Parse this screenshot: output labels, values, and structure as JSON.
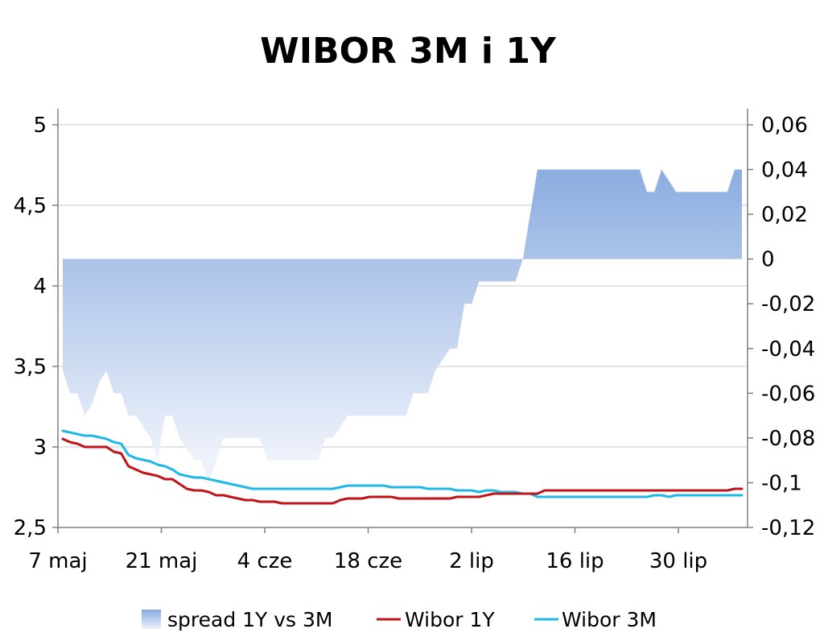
{
  "chart_data": {
    "type": "line",
    "title": "WIBOR 3M i 1Y",
    "x_tick_labels": [
      "7 maj",
      "21 maj",
      "4 cze",
      "18 cze",
      "2 lip",
      "16 lip",
      "30 lip"
    ],
    "y_left": {
      "min": 2.5,
      "max": 5,
      "ticks": [
        "5",
        "4,5",
        "4",
        "3,5",
        "3",
        "2,5"
      ],
      "tick_values": [
        5,
        4.5,
        4,
        3.5,
        3,
        2.5
      ]
    },
    "y_right": {
      "min": -0.12,
      "max": 0.06,
      "ticks": [
        "0,06",
        "0,04",
        "0,02",
        "0",
        "-0,02",
        "-0,04",
        "-0,06",
        "-0,08",
        "-0,1",
        "-0,12"
      ],
      "tick_values": [
        0.06,
        0.04,
        0.02,
        0,
        -0.02,
        -0.04,
        -0.06,
        -0.08,
        -0.1,
        -0.12
      ]
    },
    "grid": "horizontal",
    "legend_position": "bottom",
    "series": [
      {
        "name": "spread 1Y vs 3M",
        "kind": "area",
        "axis": "right",
        "color": "#8eaee0",
        "x": [
          0,
          1,
          2,
          3,
          4,
          5,
          6,
          7,
          8,
          9,
          10,
          11,
          12,
          13,
          14,
          15,
          16,
          17,
          18,
          19,
          20,
          21,
          22,
          23,
          24,
          25,
          26,
          27,
          28,
          29,
          30,
          31,
          32,
          33,
          34,
          35,
          36,
          37,
          38,
          39,
          40,
          41,
          42,
          43,
          44,
          45,
          46,
          47,
          48,
          49,
          50,
          51,
          52,
          53,
          54,
          55,
          56,
          57,
          58,
          59,
          60,
          61,
          62,
          63,
          64,
          65,
          66,
          67,
          68,
          69,
          70,
          71,
          72,
          73,
          74,
          75,
          76,
          77,
          78,
          79,
          80,
          81,
          82,
          83,
          84,
          85,
          86,
          87,
          88,
          89,
          90,
          91,
          92,
          93
        ],
        "values": [
          -0.05,
          -0.06,
          -0.06,
          -0.07,
          -0.065,
          -0.055,
          -0.05,
          -0.06,
          -0.06,
          -0.07,
          -0.07,
          -0.075,
          -0.08,
          -0.09,
          -0.07,
          -0.07,
          -0.08,
          -0.085,
          -0.09,
          -0.09,
          -0.1,
          -0.09,
          -0.08,
          -0.08,
          -0.08,
          -0.08,
          -0.08,
          -0.08,
          -0.09,
          -0.09,
          -0.09,
          -0.09,
          -0.09,
          -0.09,
          -0.09,
          -0.09,
          -0.08,
          -0.08,
          -0.075,
          -0.07,
          -0.07,
          -0.07,
          -0.07,
          -0.07,
          -0.07,
          -0.07,
          -0.07,
          -0.07,
          -0.06,
          -0.06,
          -0.06,
          -0.05,
          -0.045,
          -0.04,
          -0.04,
          -0.02,
          -0.02,
          -0.01,
          -0.01,
          -0.01,
          -0.01,
          -0.01,
          -0.01,
          0.0,
          0.02,
          0.04,
          0.04,
          0.04,
          0.04,
          0.04,
          0.04,
          0.04,
          0.04,
          0.04,
          0.04,
          0.04,
          0.04,
          0.04,
          0.04,
          0.04,
          0.03,
          0.03,
          0.04,
          0.035,
          0.03,
          0.03,
          0.03,
          0.03,
          0.03,
          0.03,
          0.03,
          0.03,
          0.04,
          0.04
        ]
      },
      {
        "name": "Wibor 1Y",
        "kind": "line",
        "axis": "left",
        "color": "#c0141b",
        "x": [
          0,
          1,
          2,
          3,
          4,
          5,
          6,
          7,
          8,
          9,
          10,
          11,
          12,
          13,
          14,
          15,
          16,
          17,
          18,
          19,
          20,
          21,
          22,
          23,
          24,
          25,
          26,
          27,
          28,
          29,
          30,
          31,
          32,
          33,
          34,
          35,
          36,
          37,
          38,
          39,
          40,
          41,
          42,
          43,
          44,
          45,
          46,
          47,
          48,
          49,
          50,
          51,
          52,
          53,
          54,
          55,
          56,
          57,
          58,
          59,
          60,
          61,
          62,
          63,
          64,
          65,
          66,
          67,
          68,
          69,
          70,
          71,
          72,
          73,
          74,
          75,
          76,
          77,
          78,
          79,
          80,
          81,
          82,
          83,
          84,
          85,
          86,
          87,
          88,
          89,
          90,
          91,
          92,
          93
        ],
        "values": [
          3.05,
          3.03,
          3.02,
          3.0,
          3.0,
          3.0,
          3.0,
          2.97,
          2.96,
          2.88,
          2.86,
          2.84,
          2.83,
          2.82,
          2.8,
          2.8,
          2.77,
          2.74,
          2.73,
          2.73,
          2.72,
          2.7,
          2.7,
          2.69,
          2.68,
          2.67,
          2.67,
          2.66,
          2.66,
          2.66,
          2.65,
          2.65,
          2.65,
          2.65,
          2.65,
          2.65,
          2.65,
          2.65,
          2.67,
          2.68,
          2.68,
          2.68,
          2.69,
          2.69,
          2.69,
          2.69,
          2.68,
          2.68,
          2.68,
          2.68,
          2.68,
          2.68,
          2.68,
          2.68,
          2.69,
          2.69,
          2.69,
          2.69,
          2.7,
          2.71,
          2.71,
          2.71,
          2.71,
          2.71,
          2.71,
          2.71,
          2.73,
          2.73,
          2.73,
          2.73,
          2.73,
          2.73,
          2.73,
          2.73,
          2.73,
          2.73,
          2.73,
          2.73,
          2.73,
          2.73,
          2.73,
          2.73,
          2.73,
          2.73,
          2.73,
          2.73,
          2.73,
          2.73,
          2.73,
          2.73,
          2.73,
          2.73,
          2.74,
          2.74
        ]
      },
      {
        "name": "Wibor 3M",
        "kind": "line",
        "axis": "left",
        "color": "#1fb8e6",
        "x": [
          0,
          1,
          2,
          3,
          4,
          5,
          6,
          7,
          8,
          9,
          10,
          11,
          12,
          13,
          14,
          15,
          16,
          17,
          18,
          19,
          20,
          21,
          22,
          23,
          24,
          25,
          26,
          27,
          28,
          29,
          30,
          31,
          32,
          33,
          34,
          35,
          36,
          37,
          38,
          39,
          40,
          41,
          42,
          43,
          44,
          45,
          46,
          47,
          48,
          49,
          50,
          51,
          52,
          53,
          54,
          55,
          56,
          57,
          58,
          59,
          60,
          61,
          62,
          63,
          64,
          65,
          66,
          67,
          68,
          69,
          70,
          71,
          72,
          73,
          74,
          75,
          76,
          77,
          78,
          79,
          80,
          81,
          82,
          83,
          84,
          85,
          86,
          87,
          88,
          89,
          90,
          91,
          92,
          93
        ],
        "values": [
          3.1,
          3.09,
          3.08,
          3.07,
          3.07,
          3.06,
          3.05,
          3.03,
          3.02,
          2.95,
          2.93,
          2.92,
          2.91,
          2.89,
          2.88,
          2.86,
          2.83,
          2.82,
          2.81,
          2.81,
          2.8,
          2.79,
          2.78,
          2.77,
          2.76,
          2.75,
          2.74,
          2.74,
          2.74,
          2.74,
          2.74,
          2.74,
          2.74,
          2.74,
          2.74,
          2.74,
          2.74,
          2.74,
          2.75,
          2.76,
          2.76,
          2.76,
          2.76,
          2.76,
          2.76,
          2.75,
          2.75,
          2.75,
          2.75,
          2.75,
          2.74,
          2.74,
          2.74,
          2.74,
          2.73,
          2.73,
          2.73,
          2.72,
          2.73,
          2.73,
          2.72,
          2.72,
          2.72,
          2.71,
          2.71,
          2.69,
          2.69,
          2.69,
          2.69,
          2.69,
          2.69,
          2.69,
          2.69,
          2.69,
          2.69,
          2.69,
          2.69,
          2.69,
          2.69,
          2.69,
          2.69,
          2.7,
          2.7,
          2.69,
          2.7,
          2.7,
          2.7,
          2.7,
          2.7,
          2.7,
          2.7,
          2.7,
          2.7,
          2.7
        ]
      }
    ]
  }
}
